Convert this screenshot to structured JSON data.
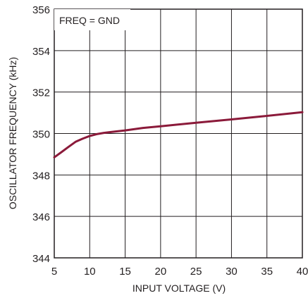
{
  "chart_data": {
    "type": "line",
    "xlabel": "INPUT VOLTAGE (V)",
    "ylabel": "OSCILLATOR FREQUENCY (kHz)",
    "xlim": [
      5,
      40
    ],
    "ylim": [
      344,
      356
    ],
    "xticks": [
      "5",
      "10",
      "15",
      "20",
      "25",
      "30",
      "35",
      "40"
    ],
    "yticks": [
      "344",
      "346",
      "348",
      "350",
      "352",
      "354",
      "356"
    ],
    "grid": true,
    "annotation": "FREQ = GND",
    "line_color": "#8b1a3a",
    "series": [
      {
        "x": [
          5,
          6,
          7,
          8,
          9,
          10,
          11,
          12,
          13,
          15,
          17.5,
          20,
          25,
          30,
          35,
          40
        ],
        "y": [
          348.85,
          349.1,
          349.35,
          349.6,
          349.75,
          349.88,
          349.97,
          350.03,
          350.07,
          350.15,
          350.27,
          350.35,
          350.52,
          350.68,
          350.85,
          351.03
        ]
      }
    ]
  }
}
